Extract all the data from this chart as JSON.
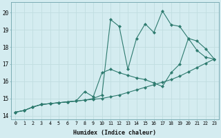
{
  "xlabel": "Humidex (Indice chaleur)",
  "bg_color": "#d4ecf0",
  "line_color": "#2d7a6e",
  "grid_color": "#c0dde0",
  "xlim": [
    -0.5,
    23.5
  ],
  "ylim": [
    13.8,
    20.6
  ],
  "yticks": [
    14,
    15,
    16,
    17,
    18,
    19,
    20
  ],
  "xticks": [
    0,
    1,
    2,
    3,
    4,
    5,
    6,
    7,
    8,
    9,
    10,
    11,
    12,
    13,
    14,
    15,
    16,
    17,
    18,
    19,
    20,
    21,
    22,
    23
  ],
  "series1_x": [
    0,
    1,
    2,
    3,
    4,
    5,
    6,
    7,
    8,
    9,
    10,
    11,
    12,
    13,
    14,
    15,
    16,
    17,
    18,
    19,
    20,
    21,
    22,
    23
  ],
  "series1_y": [
    14.2,
    14.3,
    14.5,
    14.65,
    14.7,
    14.75,
    14.8,
    14.85,
    14.9,
    14.95,
    15.0,
    15.1,
    15.2,
    15.35,
    15.5,
    15.65,
    15.8,
    15.95,
    16.1,
    16.3,
    16.55,
    16.8,
    17.05,
    17.3
  ],
  "series2_x": [
    0,
    1,
    2,
    3,
    4,
    5,
    6,
    7,
    8,
    9,
    10,
    11,
    12,
    13,
    14,
    15,
    16,
    17,
    18,
    19,
    20,
    21,
    22,
    23
  ],
  "series2_y": [
    14.2,
    14.3,
    14.5,
    14.65,
    14.7,
    14.75,
    14.8,
    14.85,
    15.4,
    15.1,
    16.5,
    16.7,
    16.5,
    16.35,
    16.2,
    16.1,
    15.9,
    15.7,
    16.5,
    17.0,
    18.5,
    18.35,
    17.9,
    17.3
  ],
  "series3_x": [
    0,
    1,
    2,
    3,
    4,
    5,
    6,
    7,
    8,
    9,
    10,
    11,
    12,
    13,
    14,
    15,
    16,
    17,
    18,
    19,
    20,
    21,
    22,
    23
  ],
  "series3_y": [
    14.2,
    14.3,
    14.5,
    14.65,
    14.7,
    14.75,
    14.8,
    14.85,
    14.9,
    15.0,
    15.2,
    19.6,
    19.2,
    16.7,
    18.5,
    19.35,
    18.85,
    20.1,
    19.3,
    19.2,
    18.5,
    17.8,
    17.4,
    17.3
  ]
}
